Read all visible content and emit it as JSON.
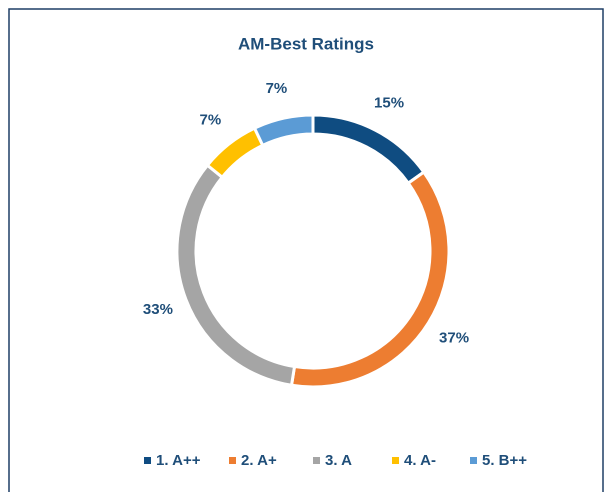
{
  "chart_data": {
    "type": "donut",
    "title": "AM-Best Ratings",
    "categories": [
      "1. A++",
      "2. A+",
      "3. A",
      "4. A-",
      "5. B++"
    ],
    "values": [
      15,
      37,
      33,
      7,
      7
    ],
    "value_labels": [
      "15%",
      "37%",
      "33%",
      "7%",
      "7%"
    ],
    "colors": [
      "#0f4c81",
      "#ed7d31",
      "#a5a5a5",
      "#ffc000",
      "#5b9bd5"
    ],
    "legend": "bottom"
  }
}
